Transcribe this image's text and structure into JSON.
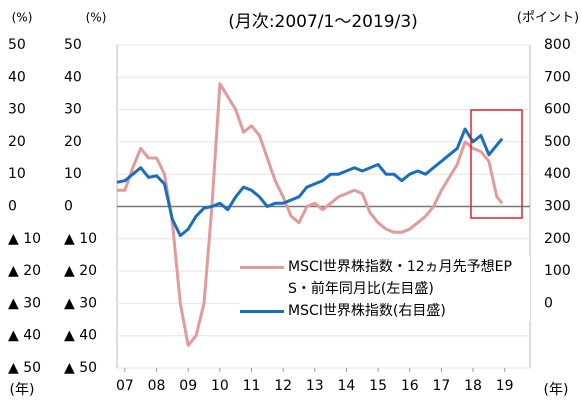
{
  "chart_data": {
    "type": "line",
    "subtitle": "(月次:2007/1〜2019/3)",
    "y_label": "(%)",
    "y2_label": "(ポイント)",
    "x_label": "(年)",
    "x": [
      2007.0,
      2007.25,
      2007.5,
      2007.75,
      2008.0,
      2008.25,
      2008.5,
      2008.75,
      2009.0,
      2009.25,
      2009.5,
      2009.75,
      2010.0,
      2010.25,
      2010.5,
      2010.75,
      2011.0,
      2011.25,
      2011.5,
      2011.75,
      2012.0,
      2012.25,
      2012.5,
      2012.75,
      2013.0,
      2013.25,
      2013.5,
      2013.75,
      2014.0,
      2014.25,
      2014.5,
      2014.75,
      2015.0,
      2015.25,
      2015.5,
      2015.75,
      2016.0,
      2016.25,
      2016.5,
      2016.75,
      2017.0,
      2017.25,
      2017.5,
      2017.75,
      2018.0,
      2018.25,
      2018.5,
      2018.75,
      2019.0,
      2019.17
    ],
    "xlim": [
      2007.0,
      2020.05
    ],
    "xticks": [
      {
        "value": 2007.25,
        "label": "07"
      },
      {
        "value": 2008.25,
        "label": "08"
      },
      {
        "value": 2009.25,
        "label": "09"
      },
      {
        "value": 2010.25,
        "label": "10"
      },
      {
        "value": 2011.25,
        "label": "11"
      },
      {
        "value": 2012.25,
        "label": "12"
      },
      {
        "value": 2013.25,
        "label": "13"
      },
      {
        "value": 2014.25,
        "label": "14"
      },
      {
        "value": 2015.25,
        "label": "15"
      },
      {
        "value": 2016.25,
        "label": "16"
      },
      {
        "value": 2017.25,
        "label": "17"
      },
      {
        "value": 2018.25,
        "label": "18"
      },
      {
        "value": 2019.25,
        "label": "19"
      }
    ],
    "ylim": [
      -50,
      50
    ],
    "yticks": [
      {
        "value": -50,
        "label": "▲ 50"
      },
      {
        "value": -40,
        "label": "▲ 40"
      },
      {
        "value": -30,
        "label": "▲ 30"
      },
      {
        "value": -20,
        "label": "▲ 20"
      },
      {
        "value": -10,
        "label": "▲ 10"
      },
      0,
      10,
      20,
      30,
      40,
      50
    ],
    "y2lim": [
      -200,
      800
    ],
    "y2ticks": [
      0,
      100,
      200,
      300,
      400,
      500,
      600,
      700,
      800
    ],
    "grid": true,
    "series": [
      {
        "name": "MSCI世界株指数・12ヵ月先予想EPS・前年同月比(左目盛)",
        "color": "#e39a9a",
        "values": [
          5,
          5,
          12,
          18,
          15,
          15,
          10,
          -5,
          -30,
          -43,
          -40,
          -30,
          0,
          38,
          34,
          30,
          23,
          25,
          22,
          15,
          8,
          3,
          -3,
          -5,
          0,
          1,
          -1,
          1,
          3,
          4,
          5,
          4,
          -2,
          -5,
          -7,
          -8,
          -8,
          -7,
          -5,
          -3,
          0,
          5,
          9,
          13,
          20,
          18,
          17,
          14,
          3,
          1
        ]
      },
      {
        "name": "MSCI世界株指数(右目盛)",
        "color": "#1a6ebd",
        "axis": "y2",
        "values": [
          375,
          380,
          400,
          420,
          390,
          395,
          370,
          260,
          210,
          230,
          270,
          295,
          300,
          310,
          290,
          330,
          360,
          350,
          330,
          300,
          310,
          310,
          320,
          330,
          360,
          370,
          380,
          400,
          400,
          410,
          420,
          410,
          420,
          430,
          400,
          400,
          380,
          400,
          410,
          400,
          420,
          440,
          460,
          480,
          540,
          500,
          520,
          460,
          490,
          510
        ]
      }
    ]
  }
}
